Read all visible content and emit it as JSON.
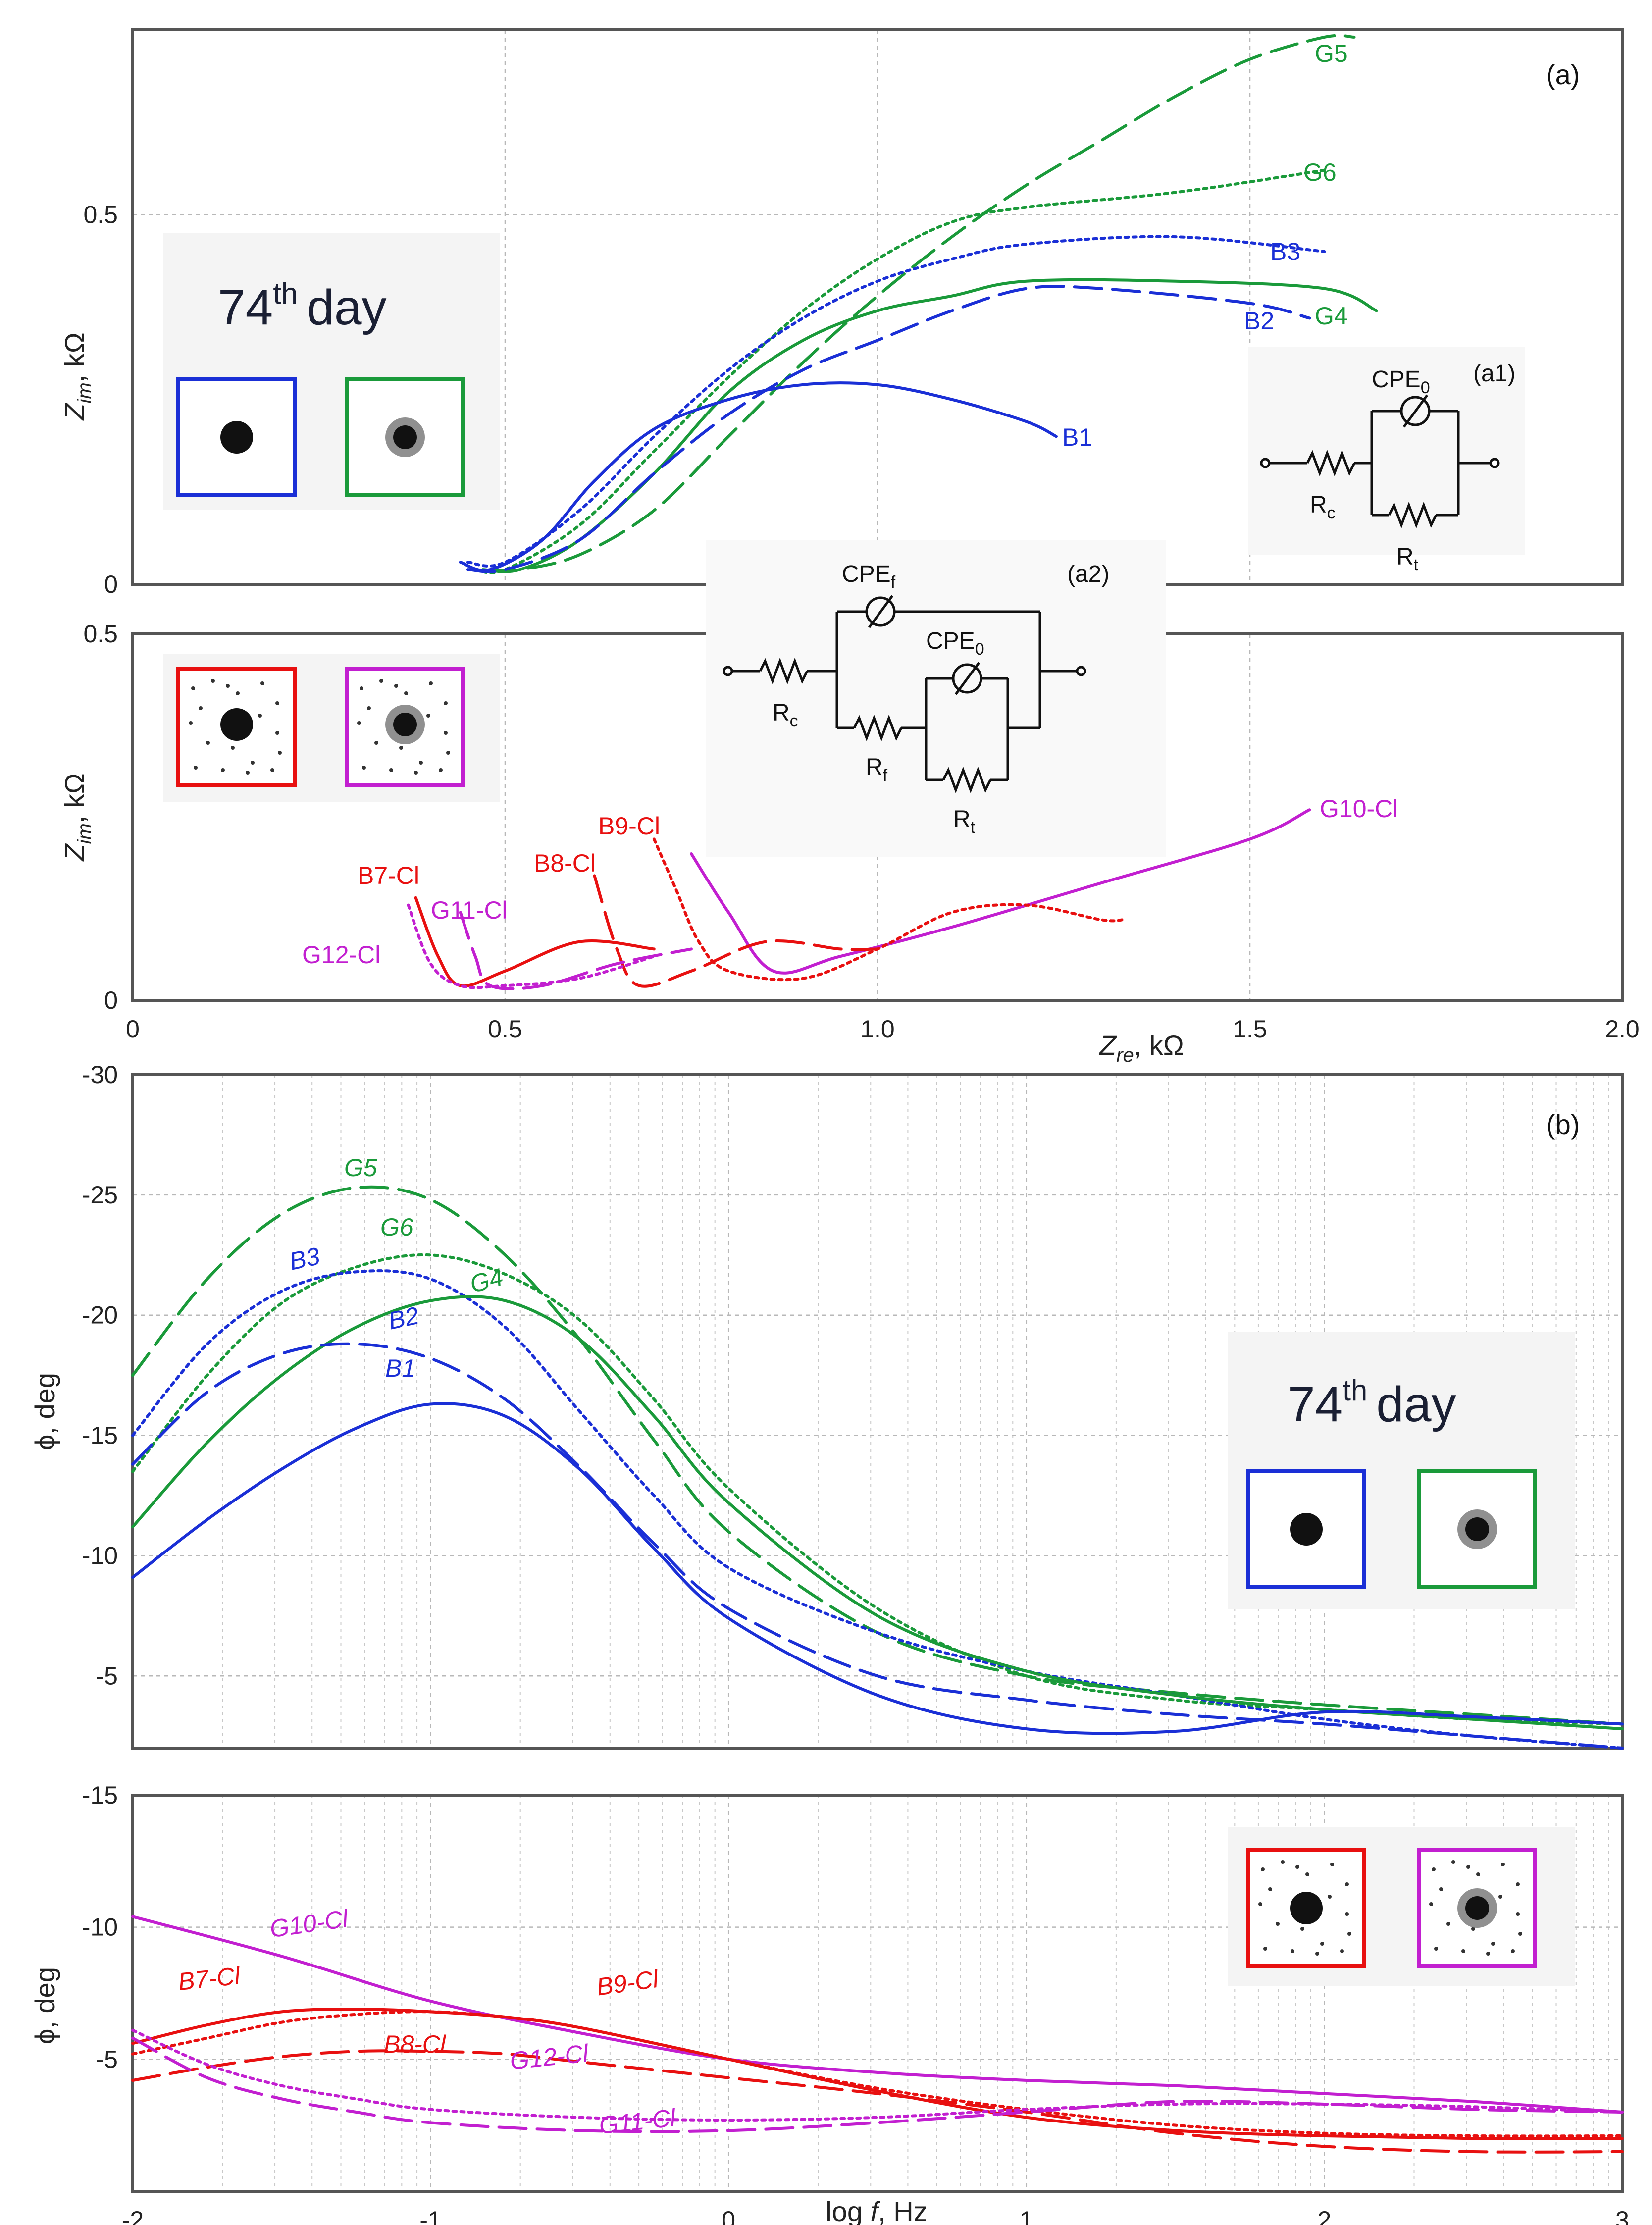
{
  "colors": {
    "blue": "#1a2fd6",
    "green": "#1a9a3a",
    "red": "#e81010",
    "magenta": "#c21fd0",
    "black": "#111111"
  },
  "legend": {
    "day_number": "74",
    "day_sup": "th",
    "day_word": "day"
  },
  "chart_data": [
    {
      "id": "a-upper",
      "type": "line",
      "panel_label": "(a)",
      "xlim": [
        0,
        2.0
      ],
      "ylim": [
        0,
        0.75
      ],
      "ylabel": "Z_im, kΩ",
      "yticks": [
        {
          "v": 0,
          "t": "0"
        },
        {
          "v": 0.5,
          "t": "0.5"
        }
      ],
      "series": [
        {
          "name": "G5",
          "color": "green",
          "dash": "long",
          "x": [
            0.48,
            0.52,
            0.6,
            0.7,
            0.8,
            0.9,
            1.0,
            1.1,
            1.2,
            1.3,
            1.4,
            1.5,
            1.6,
            1.64
          ],
          "y": [
            0.02,
            0.02,
            0.04,
            0.1,
            0.2,
            0.3,
            0.39,
            0.47,
            0.54,
            0.6,
            0.66,
            0.71,
            0.74,
            0.74
          ]
        },
        {
          "name": "G6",
          "color": "green",
          "dash": "dot",
          "x": [
            0.46,
            0.5,
            0.6,
            0.7,
            0.8,
            0.9,
            1.0,
            1.1,
            1.2,
            1.4,
            1.6
          ],
          "y": [
            0.02,
            0.02,
            0.08,
            0.18,
            0.28,
            0.37,
            0.44,
            0.49,
            0.51,
            0.53,
            0.56
          ]
        },
        {
          "name": "B3",
          "color": "blue",
          "dash": "dot",
          "x": [
            0.45,
            0.5,
            0.6,
            0.7,
            0.8,
            0.9,
            1.0,
            1.1,
            1.2,
            1.4,
            1.6
          ],
          "y": [
            0.03,
            0.03,
            0.1,
            0.2,
            0.29,
            0.36,
            0.41,
            0.44,
            0.46,
            0.47,
            0.45
          ]
        },
        {
          "name": "G4",
          "color": "green",
          "dash": "solid",
          "x": [
            0.47,
            0.52,
            0.6,
            0.7,
            0.8,
            0.9,
            1.0,
            1.1,
            1.2,
            1.4,
            1.6,
            1.67
          ],
          "y": [
            0.02,
            0.02,
            0.06,
            0.15,
            0.26,
            0.33,
            0.37,
            0.39,
            0.41,
            0.41,
            0.4,
            0.37
          ]
        },
        {
          "name": "B2",
          "color": "blue",
          "dash": "long",
          "x": [
            0.45,
            0.5,
            0.6,
            0.7,
            0.8,
            0.9,
            1.0,
            1.1,
            1.2,
            1.3,
            1.5,
            1.58
          ],
          "y": [
            0.02,
            0.02,
            0.06,
            0.15,
            0.23,
            0.29,
            0.33,
            0.37,
            0.4,
            0.4,
            0.38,
            0.36
          ]
        },
        {
          "name": "B1",
          "color": "blue",
          "dash": "solid",
          "x": [
            0.44,
            0.48,
            0.55,
            0.62,
            0.7,
            0.8,
            0.9,
            1.0,
            1.1,
            1.2,
            1.24
          ],
          "y": [
            0.03,
            0.02,
            0.06,
            0.14,
            0.21,
            0.25,
            0.27,
            0.27,
            0.25,
            0.22,
            0.2
          ]
        }
      ]
    },
    {
      "id": "a-lower",
      "type": "line",
      "xlim": [
        0,
        2.0
      ],
      "ylim": [
        0,
        0.5
      ],
      "xlabel": "Z_re, kΩ",
      "ylabel": "Z_im, kΩ",
      "xticks": [
        {
          "v": 0,
          "t": "0"
        },
        {
          "v": 0.5,
          "t": "0.5"
        },
        {
          "v": 1.0,
          "t": "1.0"
        },
        {
          "v": 1.5,
          "t": "1.5"
        },
        {
          "v": 2.0,
          "t": "2.0"
        }
      ],
      "yticks": [
        {
          "v": 0,
          "t": "0"
        },
        {
          "v": 0.5,
          "t": "0.5"
        }
      ],
      "series": [
        {
          "name": "G10-Cl",
          "color": "magenta",
          "dash": "solid",
          "x": [
            0.75,
            0.8,
            0.86,
            0.95,
            1.1,
            1.3,
            1.5,
            1.58
          ],
          "y": [
            0.2,
            0.12,
            0.04,
            0.06,
            0.1,
            0.16,
            0.22,
            0.26
          ]
        },
        {
          "name": "B9-Cl",
          "color": "red",
          "dash": "dot",
          "x": [
            0.7,
            0.73,
            0.76,
            0.8,
            0.9,
            1.0,
            1.1,
            1.2,
            1.3,
            1.33
          ],
          "y": [
            0.22,
            0.15,
            0.08,
            0.04,
            0.03,
            0.07,
            0.12,
            0.13,
            0.11,
            0.11
          ]
        },
        {
          "name": "B8-Cl",
          "color": "red",
          "dash": "long",
          "x": [
            0.62,
            0.65,
            0.68,
            0.75,
            0.85,
            0.95,
            1.0
          ],
          "y": [
            0.17,
            0.07,
            0.02,
            0.04,
            0.08,
            0.07,
            0.07
          ]
        },
        {
          "name": "B7-Cl",
          "color": "red",
          "dash": "solid",
          "x": [
            0.38,
            0.41,
            0.44,
            0.5,
            0.6,
            0.7
          ],
          "y": [
            0.14,
            0.06,
            0.02,
            0.04,
            0.08,
            0.07
          ]
        },
        {
          "name": "G11-Cl",
          "color": "magenta",
          "dash": "long",
          "x": [
            0.44,
            0.46,
            0.48,
            0.55,
            0.65,
            0.75
          ],
          "y": [
            0.12,
            0.06,
            0.02,
            0.02,
            0.05,
            0.07
          ]
        },
        {
          "name": "G12-Cl",
          "color": "magenta",
          "dash": "dot",
          "x": [
            0.37,
            0.4,
            0.44,
            0.5,
            0.6,
            0.7
          ],
          "y": [
            0.13,
            0.05,
            0.02,
            0.02,
            0.03,
            0.06
          ]
        }
      ]
    },
    {
      "id": "b-upper",
      "type": "line",
      "panel_label": "(b)",
      "xlim": [
        -2,
        3
      ],
      "ylim": [
        -2,
        -30
      ],
      "ylabel": "ϕ, deg",
      "yticks": [
        {
          "v": -30,
          "t": "-30"
        },
        {
          "v": -25,
          "t": "-25"
        },
        {
          "v": -20,
          "t": "-20"
        },
        {
          "v": -15,
          "t": "-15"
        },
        {
          "v": -10,
          "t": "-10"
        },
        {
          "v": -5,
          "t": "-5"
        }
      ],
      "series": [
        {
          "name": "G5",
          "color": "green",
          "dash": "long",
          "x": [
            -2,
            -1.75,
            -1.5,
            -1.25,
            -1,
            -0.75,
            -0.5,
            -0.25,
            0,
            0.5,
            1,
            1.5,
            2,
            2.5,
            3
          ],
          "y": [
            -17.5,
            -21.5,
            -24.2,
            -25.3,
            -24.8,
            -22.5,
            -19,
            -14.8,
            -11,
            -6.8,
            -5,
            -4.3,
            -3.8,
            -3.4,
            -3
          ]
        },
        {
          "name": "G6",
          "color": "green",
          "dash": "dot",
          "x": [
            -2,
            -1.75,
            -1.5,
            -1.25,
            -1,
            -0.75,
            -0.5,
            -0.25,
            0,
            0.5,
            1,
            1.5,
            2,
            2.5,
            3
          ],
          "y": [
            -13.5,
            -17.5,
            -20.5,
            -22,
            -22.5,
            -21.7,
            -19.8,
            -16.5,
            -12.8,
            -7.8,
            -5,
            -4,
            -3.6,
            -3.2,
            -3
          ]
        },
        {
          "name": "B3",
          "color": "blue",
          "dash": "dot",
          "x": [
            -2,
            -1.75,
            -1.5,
            -1.25,
            -1,
            -0.75,
            -0.5,
            -0.25,
            0,
            0.5,
            1,
            1.5,
            2,
            2.5,
            3
          ],
          "y": [
            -15,
            -18.8,
            -21,
            -21.8,
            -21.5,
            -19.5,
            -16,
            -12.5,
            -9.5,
            -6.8,
            -5.2,
            -4.2,
            -3.2,
            -2.5,
            -2
          ]
        },
        {
          "name": "G4",
          "color": "green",
          "dash": "solid",
          "x": [
            -2,
            -1.75,
            -1.5,
            -1.25,
            -1,
            -0.75,
            -0.5,
            -0.25,
            0,
            0.5,
            1,
            1.5,
            2,
            2.5,
            3
          ],
          "y": [
            -11.2,
            -14.7,
            -17.5,
            -19.5,
            -20.6,
            -20.6,
            -19,
            -15.8,
            -12.2,
            -7.5,
            -5.2,
            -4.2,
            -3.6,
            -3.2,
            -2.8
          ]
        },
        {
          "name": "B2",
          "color": "blue",
          "dash": "long",
          "x": [
            -2,
            -1.75,
            -1.5,
            -1.25,
            -1,
            -0.75,
            -0.5,
            -0.25,
            0,
            0.5,
            1,
            1.5,
            2,
            2.5,
            3
          ],
          "y": [
            -13.8,
            -16.8,
            -18.4,
            -18.8,
            -18.2,
            -16.5,
            -13.7,
            -10.5,
            -7.8,
            -5,
            -4,
            -3.4,
            -3,
            -2.5,
            -2
          ]
        },
        {
          "name": "B1",
          "color": "blue",
          "dash": "solid",
          "x": [
            -2,
            -1.75,
            -1.5,
            -1.25,
            -1,
            -0.75,
            -0.5,
            -0.25,
            0,
            0.5,
            1,
            1.5,
            2,
            2.5,
            3
          ],
          "y": [
            -9.1,
            -11.5,
            -13.6,
            -15.3,
            -16.3,
            -15.8,
            -13.6,
            -10.3,
            -7.4,
            -4.2,
            -2.8,
            -2.7,
            -3.5,
            -3.3,
            -3
          ]
        }
      ]
    },
    {
      "id": "b-lower",
      "type": "line",
      "xlim": [
        -2,
        3
      ],
      "ylim": [
        0,
        -15
      ],
      "xlabel": "log f, Hz",
      "ylabel": "ϕ, deg",
      "xticks": [
        {
          "v": -2,
          "t": "-2"
        },
        {
          "v": -1,
          "t": "-1"
        },
        {
          "v": 0,
          "t": "0"
        },
        {
          "v": 1,
          "t": "1"
        },
        {
          "v": 2,
          "t": "2"
        },
        {
          "v": 3,
          "t": "3"
        }
      ],
      "yticks": [
        {
          "v": -15,
          "t": "-15"
        },
        {
          "v": -10,
          "t": "-10"
        },
        {
          "v": -5,
          "t": "-5"
        }
      ],
      "series": [
        {
          "name": "G10-Cl",
          "color": "magenta",
          "dash": "solid",
          "x": [
            -2,
            -1.5,
            -1,
            -0.5,
            0,
            0.5,
            1,
            1.5,
            2,
            2.5,
            3
          ],
          "y": [
            -10.4,
            -8.9,
            -7.2,
            -6.0,
            -5.0,
            -4.5,
            -4.2,
            -4.0,
            -3.7,
            -3.4,
            -3.0
          ]
        },
        {
          "name": "B7-Cl",
          "color": "red",
          "dash": "solid",
          "x": [
            -2,
            -1.75,
            -1.5,
            -1.25,
            -1,
            -0.75,
            -0.5,
            0,
            0.5,
            1,
            1.5,
            2,
            2.5,
            3
          ],
          "y": [
            -5.6,
            -6.3,
            -6.8,
            -6.9,
            -6.8,
            -6.6,
            -6.2,
            -5.0,
            -3.8,
            -2.8,
            -2.3,
            -2.1,
            -2.0,
            -2.0
          ]
        },
        {
          "name": "B9-Cl",
          "color": "red",
          "dash": "dot",
          "x": [
            -2,
            -1.75,
            -1.5,
            -1.25,
            -1,
            -0.75,
            -0.5,
            0,
            0.5,
            1,
            1.5,
            2,
            2.5,
            3
          ],
          "y": [
            -5.2,
            -5.8,
            -6.4,
            -6.7,
            -6.8,
            -6.6,
            -6.2,
            -5.0,
            -3.9,
            -3.1,
            -2.5,
            -2.2,
            -2.1,
            -2.1
          ]
        },
        {
          "name": "B8-Cl",
          "color": "red",
          "dash": "long",
          "x": [
            -2,
            -1.75,
            -1.5,
            -1.25,
            -1,
            -0.75,
            -0.5,
            0,
            0.5,
            1,
            1.5,
            2,
            2.5,
            3
          ],
          "y": [
            -4.2,
            -4.7,
            -5.1,
            -5.3,
            -5.3,
            -5.2,
            -4.9,
            -4.3,
            -3.7,
            -3.0,
            -2.2,
            -1.7,
            -1.5,
            -1.5
          ]
        },
        {
          "name": "G12-Cl",
          "color": "magenta",
          "dash": "dot",
          "x": [
            -2,
            -1.75,
            -1.5,
            -1.25,
            -1,
            -0.5,
            0,
            0.5,
            1,
            1.5,
            2,
            2.5,
            3
          ],
          "y": [
            -6.1,
            -4.8,
            -4.0,
            -3.5,
            -3.1,
            -2.8,
            -2.7,
            -2.8,
            -3.1,
            -3.3,
            -3.3,
            -3.2,
            -3.0
          ]
        },
        {
          "name": "G11-Cl",
          "color": "magenta",
          "dash": "long",
          "x": [
            -2,
            -1.75,
            -1.5,
            -1.25,
            -1,
            -0.5,
            0,
            0.5,
            1,
            1.5,
            2,
            2.5,
            3
          ],
          "y": [
            -5.8,
            -4.3,
            -3.5,
            -3.0,
            -2.6,
            -2.3,
            -2.3,
            -2.6,
            -3.0,
            -3.4,
            -3.3,
            -3.1,
            -3.0
          ]
        }
      ]
    }
  ],
  "series_labels": {
    "G5": "G5",
    "G6": "G6",
    "B3": "B3",
    "B2": "B2",
    "G4": "G4",
    "B1": "B1",
    "B7": "B7-Cl",
    "G11": "G11-Cl",
    "G12": "G12-Cl",
    "B8": "B8-Cl",
    "B9": "B9-Cl",
    "G10": "G10-Cl"
  },
  "axis_labels": {
    "zim_main": "Z",
    "zim_sub": "im",
    "zim_unit": ", kΩ",
    "zre_main": "Z",
    "zre_sub": "re",
    "zre_unit": ", kΩ",
    "phi": "ϕ, deg",
    "logf_log": "log ",
    "logf_f": "f",
    "logf_unit": ", Hz"
  },
  "circuits": {
    "a1": {
      "label": "(a1)",
      "cpe": "CPE",
      "cpe_sub": "0",
      "rc": "R",
      "rc_sub": "c",
      "rt": "R",
      "rt_sub": "t"
    },
    "a2": {
      "label": "(a2)",
      "cpef": "CPE",
      "cpef_sub": "f",
      "cpe0": "CPE",
      "cpe0_sub": "0",
      "rc": "R",
      "rc_sub": "c",
      "rf": "R",
      "rf_sub": "f",
      "rt": "R",
      "rt_sub": "t"
    }
  }
}
